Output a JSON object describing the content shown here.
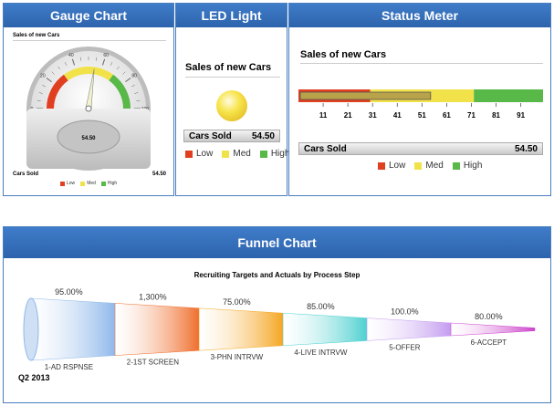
{
  "panels": {
    "gauge_title": "Gauge Chart",
    "led_title": "LED Light",
    "status_title": "Status Meter",
    "funnel_title": "Funnel Chart"
  },
  "gauge": {
    "caption": "Sales of new Cars",
    "ticks": [
      "0",
      "20",
      "40",
      "60",
      "80",
      "100"
    ],
    "value_text": "54.50",
    "footer_label": "Cars Sold",
    "footer_value": "54.50",
    "legend": [
      {
        "label": "Low",
        "color": "#e04020"
      },
      {
        "label": "Med",
        "color": "#f2e24a"
      },
      {
        "label": "High",
        "color": "#58b848"
      }
    ]
  },
  "led": {
    "caption": "Sales of new Cars",
    "label": "Cars Sold",
    "value": "54.50",
    "light_color": "#f7e44a",
    "legend": [
      {
        "label": "Low",
        "color": "#e04020"
      },
      {
        "label": "Med",
        "color": "#f2e24a"
      },
      {
        "label": "High",
        "color": "#58b848"
      }
    ]
  },
  "status": {
    "caption": "Sales of new Cars",
    "ticks": [
      "11",
      "21",
      "31",
      "41",
      "51",
      "61",
      "71",
      "81",
      "91"
    ],
    "label": "Cars Sold",
    "value": "54.50",
    "legend": [
      {
        "label": "Low",
        "color": "#e04020"
      },
      {
        "label": "Med",
        "color": "#f2e24a"
      },
      {
        "label": "High",
        "color": "#58b848"
      }
    ]
  },
  "funnel": {
    "footer": "Q2 2013"
  },
  "chart_data": [
    {
      "type": "gauge",
      "title": "Sales of new Cars",
      "value": 54.5,
      "range": [
        0,
        100
      ],
      "bands": [
        {
          "name": "Low",
          "from": 0,
          "to": 30,
          "color": "#e04020"
        },
        {
          "name": "Med",
          "from": 30,
          "to": 70,
          "color": "#f2e24a"
        },
        {
          "name": "High",
          "from": 70,
          "to": 100,
          "color": "#58b848"
        }
      ],
      "label": "Cars Sold"
    },
    {
      "type": "led",
      "title": "Sales of new Cars",
      "value": 54.5,
      "label": "Cars Sold",
      "state": "Med"
    },
    {
      "type": "bar",
      "title": "Sales of new Cars",
      "value": 54.5,
      "range": [
        1,
        100
      ],
      "ticks": [
        11,
        21,
        31,
        41,
        51,
        61,
        71,
        81,
        91
      ],
      "bands": [
        {
          "name": "Low",
          "from": 1,
          "to": 30,
          "color": "#e04020"
        },
        {
          "name": "Med",
          "from": 30,
          "to": 72,
          "color": "#f2e24a"
        },
        {
          "name": "High",
          "from": 72,
          "to": 100,
          "color": "#58b848"
        }
      ],
      "label": "Cars Sold"
    },
    {
      "type": "funnel",
      "title": "Recruiting Targets and Actuals by Process Step",
      "categories": [
        "1-AD RSPNSE",
        "2-1ST SCREEN",
        "3-PHN INTRVW",
        "4-LIVE INTRVW",
        "5-OFFER",
        "6-ACCEPT"
      ],
      "value_labels": [
        "95.00%",
        "1,300%",
        "75.00%",
        "85.00%",
        "100.0%",
        "80.00%"
      ],
      "colors": [
        "#8fb8ea",
        "#ef6f2e",
        "#f5a623",
        "#4fd0d0",
        "#c49cf0",
        "#cc44cc"
      ],
      "footer": "Q2 2013"
    }
  ]
}
